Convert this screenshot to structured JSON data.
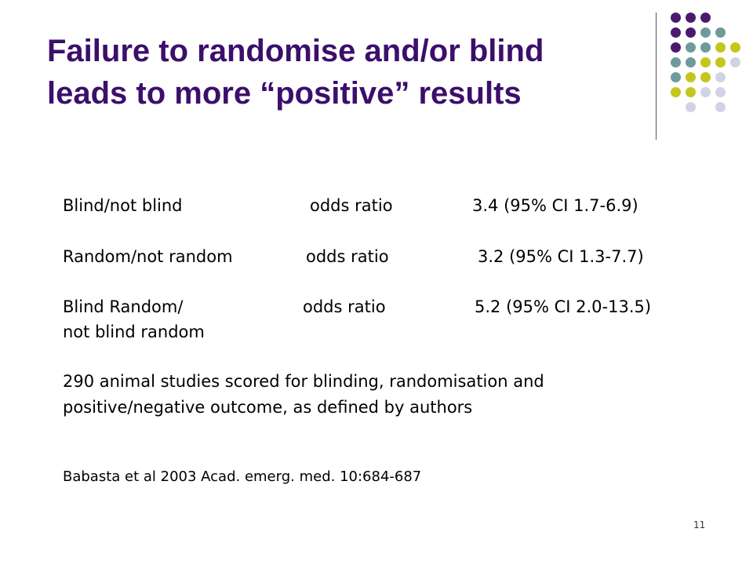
{
  "slide": {
    "title_line1": "Failure to randomise and/or blind",
    "title_line2": "leads to more “positive” results",
    "page_number": "11"
  },
  "colors": {
    "title": "#3b0f6b",
    "purple": "#4b1a6e",
    "teal": "#6f9a9c",
    "olive": "#c5c51c",
    "lavender": "#d2d2e6"
  },
  "results": [
    {
      "comparison": "Blind/not blind",
      "measure": "odds ratio",
      "value": "3.4 (95% CI 1.7-6.9)"
    },
    {
      "comparison": "Random/not random",
      "measure": "odds ratio",
      "value": "3.2 (95% CI 1.3-7.7)"
    },
    {
      "comparison": "Blind Random/",
      "comparison_line2": "not blind random",
      "measure": "odds ratio",
      "value": "5.2 (95% CI 2.0-13.5)"
    }
  ],
  "note_line1": "290 animal studies scored for blinding, randomisation and",
  "note_line2": "positive/negative outcome, as defined by authors",
  "citation": "Babasta et al 2003 Acad. emerg. med. 10:684-687",
  "decoration": {
    "dot_grid": [
      [
        "purple",
        "purple",
        "purple",
        "",
        ""
      ],
      [
        "purple",
        "purple",
        "teal",
        "teal",
        ""
      ],
      [
        "purple",
        "teal",
        "teal",
        "olive",
        "olive"
      ],
      [
        "teal",
        "teal",
        "olive",
        "olive",
        "lavender"
      ],
      [
        "teal",
        "olive",
        "olive",
        "lavender",
        ""
      ],
      [
        "olive",
        "olive",
        "lavender",
        "lavender",
        ""
      ],
      [
        "",
        "lavender",
        "",
        "lavender",
        ""
      ]
    ]
  }
}
